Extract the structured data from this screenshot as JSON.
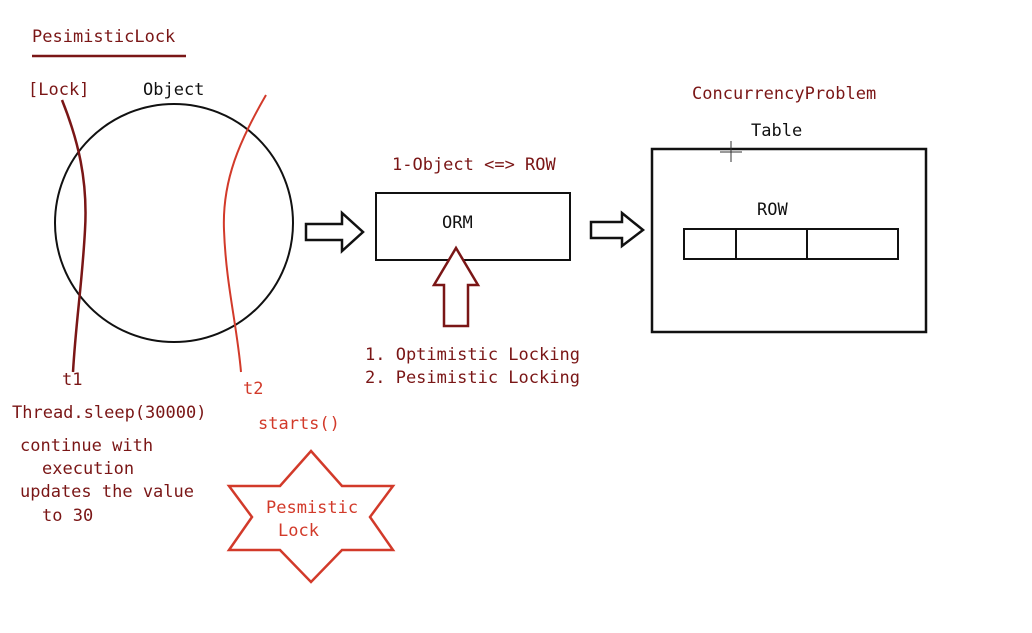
{
  "title": "PesimisticLock",
  "left": {
    "lock_label": "[Lock]",
    "object_label": "Object",
    "t1_label": "t1",
    "t2_label": "t2",
    "sleep_call": "Thread.sleep(30000)",
    "notes": [
      "continue with",
      "execution",
      "updates the value",
      "to 30"
    ],
    "starts_call": "starts()",
    "star_lines": [
      "Pesmistic",
      "Lock"
    ]
  },
  "middle": {
    "heading": "1-Object <=> ROW",
    "orm_label": "ORM",
    "methods": [
      "1. Optimistic Locking",
      "2. Pesimistic Locking"
    ]
  },
  "right": {
    "heading": "ConcurrencyProblem",
    "table_label": "Table",
    "row_label": "ROW"
  },
  "colors": {
    "dark_red": "#7a1616",
    "red": "#d23a2a",
    "black": "#111111"
  }
}
